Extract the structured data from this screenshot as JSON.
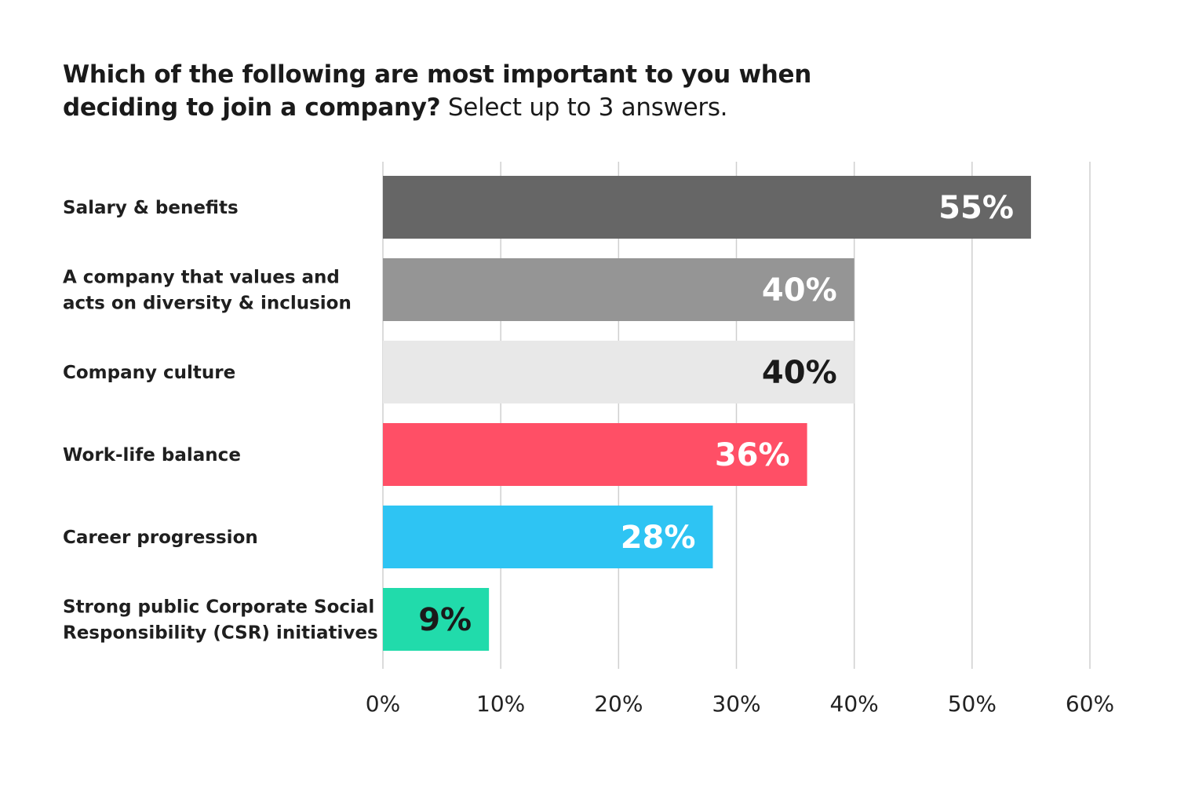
{
  "title": {
    "bold": "Which of the following are most important to you when deciding to join a company?",
    "regular": " Select up to 3 answers."
  },
  "chart_data": {
    "type": "bar",
    "orientation": "horizontal",
    "categories": [
      [
        "Salary & benefits"
      ],
      [
        "A company that values and",
        "acts on diversity & inclusion"
      ],
      [
        "Company culture"
      ],
      [
        "Work-life balance"
      ],
      [
        "Career progression"
      ],
      [
        "Strong public Corporate Social",
        "Responsibility (CSR) initiatives"
      ]
    ],
    "values": [
      55,
      40,
      40,
      36,
      28,
      9
    ],
    "value_labels": [
      "55%",
      "40%",
      "40%",
      "36%",
      "28%",
      "9%"
    ],
    "colors": [
      "#666666",
      "#959595",
      "#e8e8e8",
      "#ff4f66",
      "#2ec4f3",
      "#21dbab"
    ],
    "label_colors": [
      "#ffffff",
      "#ffffff",
      "#1a1a1a",
      "#ffffff",
      "#ffffff",
      "#1a1a1a"
    ],
    "xlim": [
      0,
      60
    ],
    "xticks": [
      0,
      10,
      20,
      30,
      40,
      50,
      60
    ],
    "xtick_labels": [
      "0%",
      "10%",
      "20%",
      "30%",
      "40%",
      "50%",
      "60%"
    ],
    "grid": true
  }
}
